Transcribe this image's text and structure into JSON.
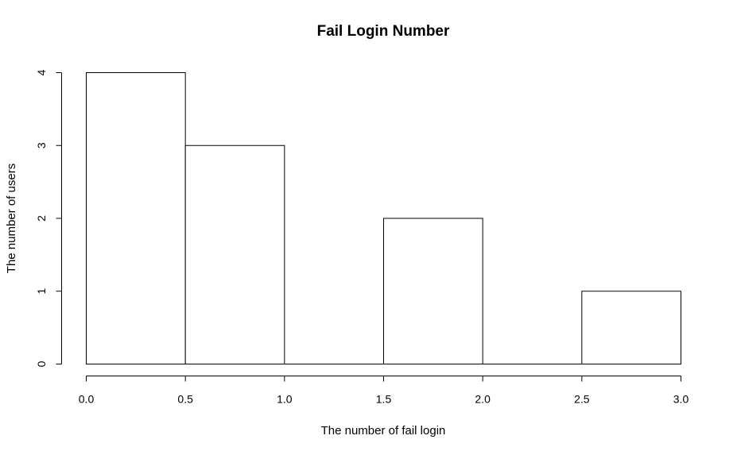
{
  "chart_data": {
    "type": "bar",
    "title": "Fail Login Number",
    "xlabel": "The number of fail login",
    "ylabel": "The number of users",
    "bins": [
      {
        "start": 0.0,
        "end": 0.5,
        "count": 4
      },
      {
        "start": 0.5,
        "end": 1.0,
        "count": 3
      },
      {
        "start": 1.0,
        "end": 1.5,
        "count": 0
      },
      {
        "start": 1.5,
        "end": 2.0,
        "count": 2
      },
      {
        "start": 2.0,
        "end": 2.5,
        "count": 0
      },
      {
        "start": 2.5,
        "end": 3.0,
        "count": 1
      }
    ],
    "xlim": [
      0,
      3
    ],
    "ylim": [
      0,
      4
    ],
    "xticks": [
      "0.0",
      "0.5",
      "1.0",
      "1.5",
      "2.0",
      "2.5",
      "3.0"
    ],
    "yticks": [
      "0",
      "1",
      "2",
      "3",
      "4"
    ],
    "grid": false,
    "colors": {
      "bar_fill": "#ffffff",
      "bar_stroke": "#000000"
    }
  }
}
